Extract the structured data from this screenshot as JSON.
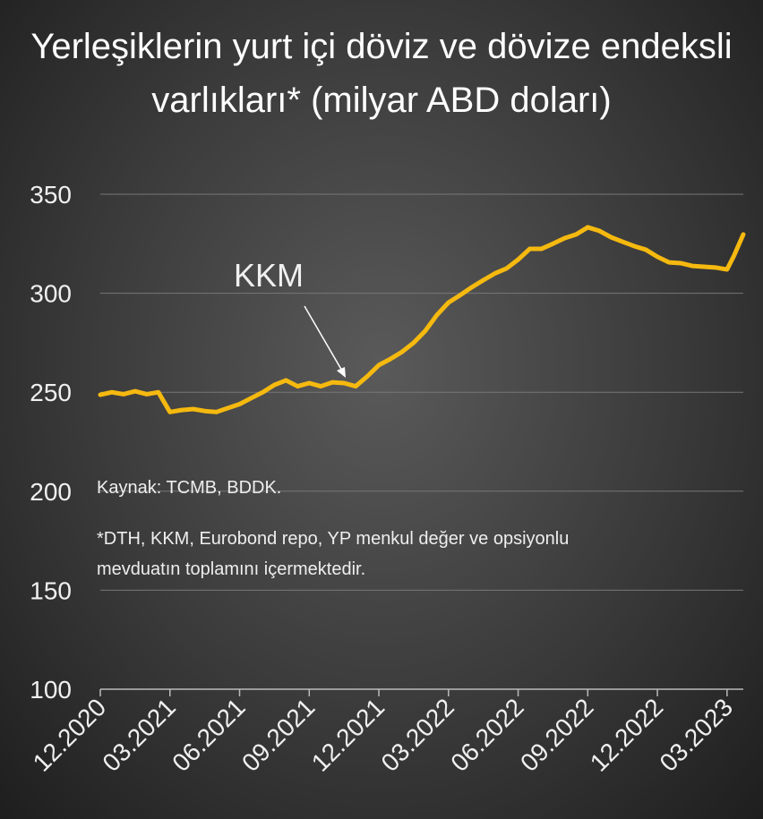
{
  "chart_data": {
    "type": "line",
    "title": "Yerleşiklerin yurt içi döviz ve dövize endeksli varlıkları* (milyar ABD doları)",
    "annotations": [
      "KKM",
      "Kaynak: TCMB, BDDK.",
      "*DTH, KKM, Eurobond repo, YP menkul değer ve opsiyonlu mevduatın toplamını içermektedir."
    ],
    "x": [
      0,
      0.5,
      1,
      1.5,
      2,
      2.5,
      3,
      3.5,
      4,
      4.5,
      5,
      5.5,
      6,
      6.5,
      7,
      7.5,
      8,
      8.5,
      9,
      9.5,
      10,
      10.5,
      11,
      11.5,
      12,
      12.5,
      13,
      13.5,
      14,
      14.5,
      15,
      15.5,
      16,
      16.5,
      17,
      17.5,
      18,
      18.5,
      19,
      19.5,
      20,
      20.5,
      21,
      21.5,
      22,
      22.5,
      23,
      23.5,
      24,
      24.5,
      25,
      25.5,
      26,
      26.5,
      27,
      27.3,
      27.7
    ],
    "series": [
      {
        "name": "KKM",
        "color": "#f5b90f",
        "values": [
          248.7,
          250,
          249,
          250.5,
          249,
          250,
          240,
          241,
          241.5,
          240.5,
          240,
          242,
          244,
          247,
          250,
          253.7,
          256,
          253,
          254.6,
          253,
          255,
          254.6,
          253,
          258,
          263.7,
          266.8,
          270.4,
          275,
          281,
          289,
          295.3,
          299,
          303,
          306.6,
          310,
          312.5,
          317,
          322.4,
          322.4,
          325,
          327.8,
          329.7,
          333.3,
          331.5,
          328.3,
          326,
          323.8,
          322,
          318.4,
          315.6,
          315.2,
          313.8,
          313.4,
          313,
          312,
          319,
          329.7
        ]
      }
    ],
    "xlim": [
      0,
      27.7
    ],
    "xticks": [
      {
        "value": 0,
        "label": "12.2020"
      },
      {
        "value": 3,
        "label": "03.2021"
      },
      {
        "value": 6,
        "label": "06.2021"
      },
      {
        "value": 9,
        "label": "09.2021"
      },
      {
        "value": 12,
        "label": "12.2021"
      },
      {
        "value": 15,
        "label": "03.2022"
      },
      {
        "value": 18,
        "label": "06.2022"
      },
      {
        "value": 21,
        "label": "09.2022"
      },
      {
        "value": 24,
        "label": "12.2022"
      },
      {
        "value": 27,
        "label": "03.2023"
      }
    ],
    "ylim": [
      100,
      350
    ],
    "yticks": [
      100,
      150,
      200,
      250,
      300,
      350
    ],
    "grid": true
  }
}
